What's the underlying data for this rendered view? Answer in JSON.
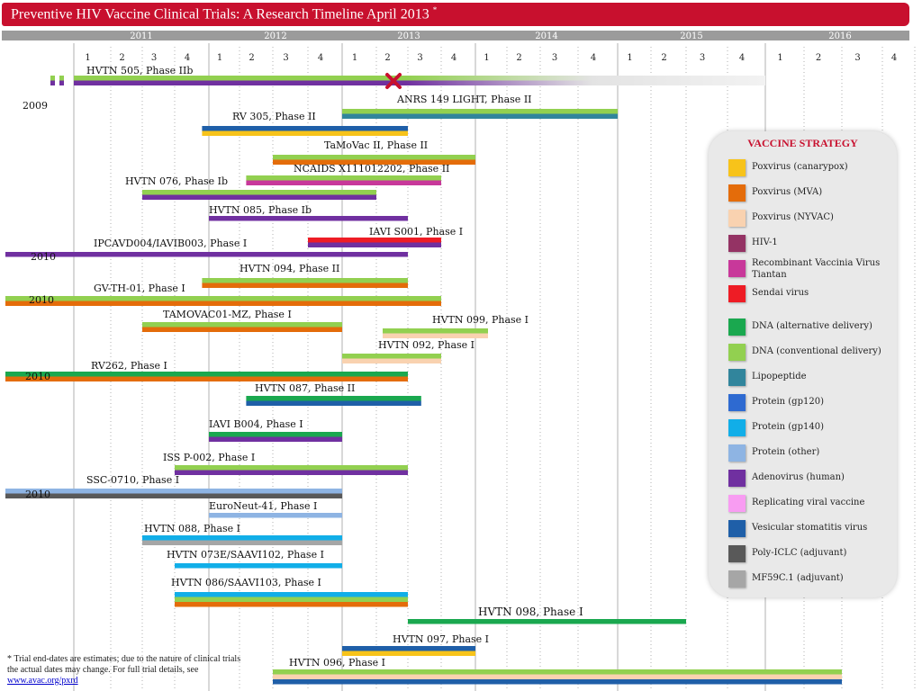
{
  "title": {
    "text": "Preventive HIV Vaccine Clinical Trials: A Research Timeline April 2013",
    "asterisk": "*"
  },
  "chart_data": {
    "type": "gantt",
    "years": [
      "2011",
      "2012",
      "2013",
      "2014",
      "2015",
      "2016"
    ],
    "quarters": [
      "1",
      "2",
      "3",
      "4"
    ],
    "tick_labels": [
      "1",
      "2",
      "3",
      "4",
      "1",
      "2",
      "3",
      "4",
      "1",
      "2",
      "3",
      "4",
      "1",
      "2",
      "3",
      "4",
      "1",
      "2",
      "3",
      "4",
      "1",
      "2",
      "3",
      "4"
    ],
    "trials": [
      {
        "name": "HVTN 505, Phase IIb",
        "start": "2011.0",
        "start_note": "",
        "end": 2016.0,
        "stripes": [
          "DNA (conventional delivery)",
          "Adenovirus (human)"
        ],
        "halted": "2013.25",
        "prestart": true
      },
      {
        "name": "ANRS 149 LIGHT, Phase II",
        "start": 2013.0,
        "end": 2015.0,
        "stripes": [
          "DNA (conventional delivery)",
          "Lipopeptide"
        ]
      },
      {
        "name": "RV 305, Phase II",
        "start": 2011.95,
        "end": 2013.5,
        "stripes": [
          "Vesicular stomatitis virus",
          "Poxvirus (canarypox)"
        ]
      },
      {
        "name": "TaMoVac II, Phase II",
        "start": 2012.5,
        "end": 2014.0,
        "stripes": [
          "DNA (conventional delivery)",
          "Poxvirus (MVA)"
        ]
      },
      {
        "name": "NCAIDS X111012202, Phase II",
        "start": 2012.3,
        "end": 2013.75,
        "stripes": [
          "DNA (conventional delivery)",
          "Recombinant Vaccinia Virus Tiantan"
        ]
      },
      {
        "name": "HVTN 076, Phase Ib",
        "start": 2011.5,
        "end": 2013.25,
        "stripes": [
          "DNA (conventional delivery)",
          "Adenovirus (human)"
        ]
      },
      {
        "name": "HVTN 085, Phase Ib",
        "start": 2012.0,
        "end": 2013.5,
        "stripes": [
          "Adenovirus (human)"
        ]
      },
      {
        "name": "IAVI S001, Phase I",
        "start": 2012.75,
        "end": 2013.75,
        "stripes": [
          "Sendai virus",
          "Adenovirus (human)"
        ]
      },
      {
        "name": "IPCAVD004/IAVIB003, Phase I",
        "start": 2010.5,
        "start_note": "2010",
        "end": 2013.5,
        "stripes": [
          "Adenovirus (human)"
        ],
        "prestart": true
      },
      {
        "name": "HVTN 094, Phase II",
        "start": 2011.95,
        "end": 2013.5,
        "stripes": [
          "DNA (conventional delivery)",
          "Poxvirus (MVA)"
        ]
      },
      {
        "name": "GV-TH-01, Phase I",
        "start": 2010.5,
        "start_note": "2010",
        "end": 2013.75,
        "stripes": [
          "DNA (conventional delivery)",
          "Poxvirus (MVA)"
        ],
        "prestart": true
      },
      {
        "name": "TAMOVAC01-MZ, Phase I",
        "start": 2011.5,
        "end": 2013.0,
        "stripes": [
          "DNA (conventional delivery)",
          "Poxvirus (MVA)"
        ]
      },
      {
        "name": "HVTN 099, Phase I",
        "start": 2013.3,
        "end": 2014.1,
        "stripes": [
          "DNA (conventional delivery)",
          "Poxvirus (NYVAC)"
        ]
      },
      {
        "name": "HVTN 092, Phase I",
        "start": 2013.0,
        "end": 2013.75,
        "stripes": [
          "DNA (conventional delivery)",
          "Poxvirus (NYVAC)"
        ]
      },
      {
        "name": "RV262, Phase I",
        "start": 2010.5,
        "start_note": "2010",
        "end": 2013.5,
        "stripes": [
          "DNA (alternative delivery)",
          "Poxvirus (MVA)"
        ],
        "prestart": true
      },
      {
        "name": "HVTN 087, Phase II",
        "start": 2012.3,
        "end": 2013.6,
        "stripes": [
          "DNA (alternative delivery)",
          "Vesicular stomatitis virus"
        ]
      },
      {
        "name": "IAVI B004, Phase I",
        "start": 2012.0,
        "end": 2013.0,
        "stripes": [
          "DNA (alternative delivery)",
          "Adenovirus (human)"
        ]
      },
      {
        "name": "ISS P-002, Phase I",
        "start": 2011.75,
        "end": 2013.5,
        "stripes": [
          "DNA (conventional delivery)",
          "Adenovirus (human)"
        ]
      },
      {
        "name": "SSC-0710, Phase I",
        "start": 2010.5,
        "start_note": "2010",
        "end": 2013.0,
        "stripes": [
          "Protein (other)",
          "Poly-ICLC (adjuvant)"
        ],
        "prestart": true
      },
      {
        "name": "EuroNeut-41, Phase I",
        "start": 2012.0,
        "end": 2013.0,
        "stripes": [
          "Protein (other)"
        ]
      },
      {
        "name": "HVTN 088, Phase I",
        "start": 2011.5,
        "end": 2013.0,
        "stripes": [
          "Protein (gp140)",
          "MF59C.1 (adjuvant)"
        ]
      },
      {
        "name": "HVTN 073E/SAAVI102, Phase I",
        "start": 2011.75,
        "end": 2013.0,
        "stripes": [
          "Protein (gp140)"
        ]
      },
      {
        "name": "HVTN 086/SAAVI103, Phase I",
        "start": 2011.75,
        "end": 2013.5,
        "stripes": [
          "Protein (gp140)",
          "DNA (conventional delivery)",
          "Poxvirus (MVA)"
        ]
      },
      {
        "name": "HVTN 098, Phase I",
        "start": 2013.5,
        "end": 2015.5,
        "stripes": [
          "DNA (alternative delivery)"
        ]
      },
      {
        "name": "HVTN 097, Phase I",
        "start": 2013.0,
        "end": 2014.0,
        "stripes": [
          "Vesicular stomatitis virus",
          "Poxvirus (canarypox)"
        ]
      },
      {
        "name": "HVTN 096, Phase I",
        "start": 2012.5,
        "end": 2016.5,
        "stripes": [
          "DNA (conventional delivery)",
          "Poxvirus (NYVAC)",
          "Vesicular stomatitis virus"
        ]
      }
    ],
    "side_year_labels": [
      "2009",
      "2010",
      "2010",
      "2010",
      "2010"
    ]
  },
  "legend": {
    "title": "VACCINE STRATEGY",
    "items": [
      {
        "label": "Poxvirus (canarypox)",
        "color": "#f7c31a"
      },
      {
        "label": "Poxvirus (MVA)",
        "color": "#e46c0a"
      },
      {
        "label": "Poxvirus (NYVAC)",
        "color": "#f9d2b0"
      },
      {
        "label": "HIV-1",
        "color": "#943364"
      },
      {
        "label": "Recombinant Vaccinia Virus Tiantan",
        "color": "#c8389a"
      },
      {
        "label": "Sendai virus",
        "color": "#ee1c25"
      },
      {
        "label": "DNA (alternative delivery)",
        "color": "#1aa84f"
      },
      {
        "label": "DNA (conventional delivery)",
        "color": "#92d050"
      },
      {
        "label": "Lipopeptide",
        "color": "#31859c"
      },
      {
        "label": "Protein (gp120)",
        "color": "#2e6ad1"
      },
      {
        "label": "Protein (gp140)",
        "color": "#11aee8"
      },
      {
        "label": "Protein (other)",
        "color": "#8eb4e3"
      },
      {
        "label": "Adenovirus (human)",
        "color": "#7030a0"
      },
      {
        "label": "Replicating viral vaccine",
        "color": "#f89cf2"
      },
      {
        "label": "Vesicular stomatitis virus",
        "color": "#1f5fa8"
      },
      {
        "label": "Poly-ICLC (adjuvant)",
        "color": "#595959"
      },
      {
        "label": "MF59C.1 (adjuvant)",
        "color": "#a6a6a6"
      }
    ]
  },
  "footnote": {
    "text": "* Trial end-dates are estimates; due to the nature of clinical trials the actual dates may change. For full trial details, see ",
    "link": "www.avac.org/pxrd"
  }
}
